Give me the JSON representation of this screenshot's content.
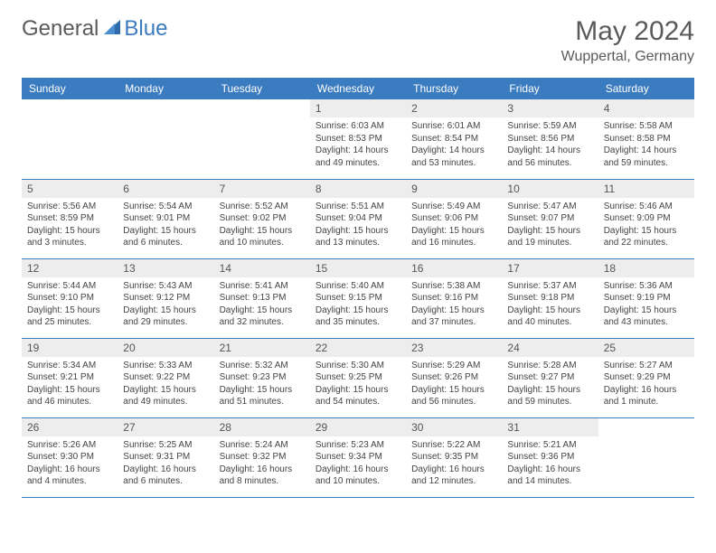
{
  "brand": {
    "part1": "General",
    "part2": "Blue"
  },
  "title": "May 2024",
  "location": "Wuppertal, Germany",
  "colors": {
    "header_bg": "#3b7bbf",
    "day_bg": "#ededed",
    "text": "#555555",
    "body_text": "#444444"
  },
  "dayNames": [
    "Sunday",
    "Monday",
    "Tuesday",
    "Wednesday",
    "Thursday",
    "Friday",
    "Saturday"
  ],
  "weeks": [
    [
      null,
      null,
      null,
      {
        "n": "1",
        "sr": "6:03 AM",
        "ss": "8:53 PM",
        "dl": "14 hours and 49 minutes."
      },
      {
        "n": "2",
        "sr": "6:01 AM",
        "ss": "8:54 PM",
        "dl": "14 hours and 53 minutes."
      },
      {
        "n": "3",
        "sr": "5:59 AM",
        "ss": "8:56 PM",
        "dl": "14 hours and 56 minutes."
      },
      {
        "n": "4",
        "sr": "5:58 AM",
        "ss": "8:58 PM",
        "dl": "14 hours and 59 minutes."
      }
    ],
    [
      {
        "n": "5",
        "sr": "5:56 AM",
        "ss": "8:59 PM",
        "dl": "15 hours and 3 minutes."
      },
      {
        "n": "6",
        "sr": "5:54 AM",
        "ss": "9:01 PM",
        "dl": "15 hours and 6 minutes."
      },
      {
        "n": "7",
        "sr": "5:52 AM",
        "ss": "9:02 PM",
        "dl": "15 hours and 10 minutes."
      },
      {
        "n": "8",
        "sr": "5:51 AM",
        "ss": "9:04 PM",
        "dl": "15 hours and 13 minutes."
      },
      {
        "n": "9",
        "sr": "5:49 AM",
        "ss": "9:06 PM",
        "dl": "15 hours and 16 minutes."
      },
      {
        "n": "10",
        "sr": "5:47 AM",
        "ss": "9:07 PM",
        "dl": "15 hours and 19 minutes."
      },
      {
        "n": "11",
        "sr": "5:46 AM",
        "ss": "9:09 PM",
        "dl": "15 hours and 22 minutes."
      }
    ],
    [
      {
        "n": "12",
        "sr": "5:44 AM",
        "ss": "9:10 PM",
        "dl": "15 hours and 25 minutes."
      },
      {
        "n": "13",
        "sr": "5:43 AM",
        "ss": "9:12 PM",
        "dl": "15 hours and 29 minutes."
      },
      {
        "n": "14",
        "sr": "5:41 AM",
        "ss": "9:13 PM",
        "dl": "15 hours and 32 minutes."
      },
      {
        "n": "15",
        "sr": "5:40 AM",
        "ss": "9:15 PM",
        "dl": "15 hours and 35 minutes."
      },
      {
        "n": "16",
        "sr": "5:38 AM",
        "ss": "9:16 PM",
        "dl": "15 hours and 37 minutes."
      },
      {
        "n": "17",
        "sr": "5:37 AM",
        "ss": "9:18 PM",
        "dl": "15 hours and 40 minutes."
      },
      {
        "n": "18",
        "sr": "5:36 AM",
        "ss": "9:19 PM",
        "dl": "15 hours and 43 minutes."
      }
    ],
    [
      {
        "n": "19",
        "sr": "5:34 AM",
        "ss": "9:21 PM",
        "dl": "15 hours and 46 minutes."
      },
      {
        "n": "20",
        "sr": "5:33 AM",
        "ss": "9:22 PM",
        "dl": "15 hours and 49 minutes."
      },
      {
        "n": "21",
        "sr": "5:32 AM",
        "ss": "9:23 PM",
        "dl": "15 hours and 51 minutes."
      },
      {
        "n": "22",
        "sr": "5:30 AM",
        "ss": "9:25 PM",
        "dl": "15 hours and 54 minutes."
      },
      {
        "n": "23",
        "sr": "5:29 AM",
        "ss": "9:26 PM",
        "dl": "15 hours and 56 minutes."
      },
      {
        "n": "24",
        "sr": "5:28 AM",
        "ss": "9:27 PM",
        "dl": "15 hours and 59 minutes."
      },
      {
        "n": "25",
        "sr": "5:27 AM",
        "ss": "9:29 PM",
        "dl": "16 hours and 1 minute."
      }
    ],
    [
      {
        "n": "26",
        "sr": "5:26 AM",
        "ss": "9:30 PM",
        "dl": "16 hours and 4 minutes."
      },
      {
        "n": "27",
        "sr": "5:25 AM",
        "ss": "9:31 PM",
        "dl": "16 hours and 6 minutes."
      },
      {
        "n": "28",
        "sr": "5:24 AM",
        "ss": "9:32 PM",
        "dl": "16 hours and 8 minutes."
      },
      {
        "n": "29",
        "sr": "5:23 AM",
        "ss": "9:34 PM",
        "dl": "16 hours and 10 minutes."
      },
      {
        "n": "30",
        "sr": "5:22 AM",
        "ss": "9:35 PM",
        "dl": "16 hours and 12 minutes."
      },
      {
        "n": "31",
        "sr": "5:21 AM",
        "ss": "9:36 PM",
        "dl": "16 hours and 14 minutes."
      },
      null
    ]
  ],
  "labels": {
    "sunrise": "Sunrise:",
    "sunset": "Sunset:",
    "daylight": "Daylight:"
  }
}
